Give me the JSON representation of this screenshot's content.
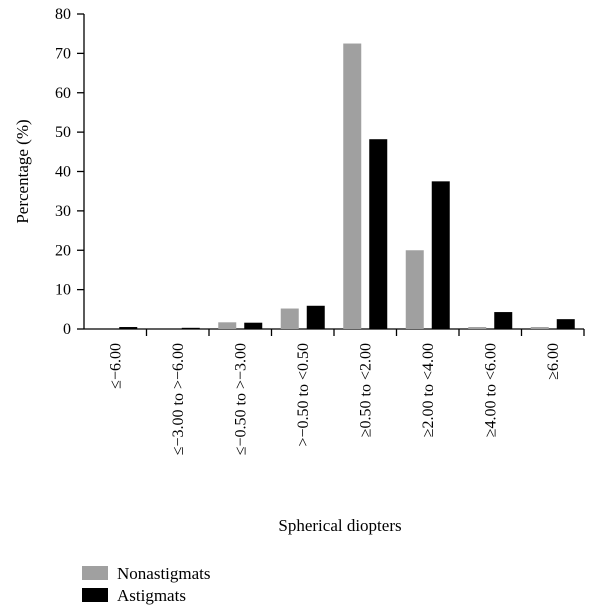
{
  "chart_data": {
    "type": "bar",
    "xlabel": "Spherical diopters",
    "ylabel": "Percentage (%)",
    "ylim": [
      0,
      80
    ],
    "yticks": [
      0,
      10,
      20,
      30,
      40,
      50,
      60,
      70,
      80
    ],
    "grid": false,
    "legend_position": "bottom-left",
    "categories": [
      "≤−6.00",
      "≤−3.00 to >−6.00",
      "≤−0.50 to >−3.00",
      ">−0.50 to <0.50",
      "≥0.50 to <2.00",
      "≥2.00 to <4.00",
      "≥4.00 to <6.00",
      "≥6.00"
    ],
    "series": [
      {
        "name": "Nonastigmats",
        "color": "#a0a0a0",
        "values": [
          0,
          0,
          1.7,
          5.2,
          72.5,
          20.0,
          0.5,
          0.5
        ]
      },
      {
        "name": "Astigmats",
        "color": "#000000",
        "values": [
          0.5,
          0.3,
          1.6,
          5.9,
          48.2,
          37.5,
          4.3,
          2.5
        ]
      }
    ]
  }
}
